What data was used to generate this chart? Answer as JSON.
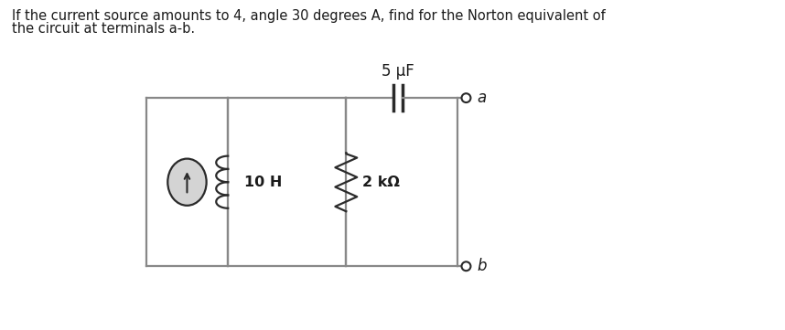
{
  "title_line1": "If the current source amounts to 4, angle 30 degrees A, find for the Norton equivalent of",
  "title_line2": "the circuit at terminals a-b.",
  "background_color": "#ffffff",
  "text_color": "#1a1a1a",
  "line_color": "#888888",
  "dark_color": "#2a2a2a",
  "label_10H": "10 H",
  "label_2k": "2 kΩ",
  "label_5uF": "5 μF",
  "label_a": "a",
  "label_b": "b",
  "figsize": [
    8.58,
    3.61
  ],
  "dpi": 100
}
